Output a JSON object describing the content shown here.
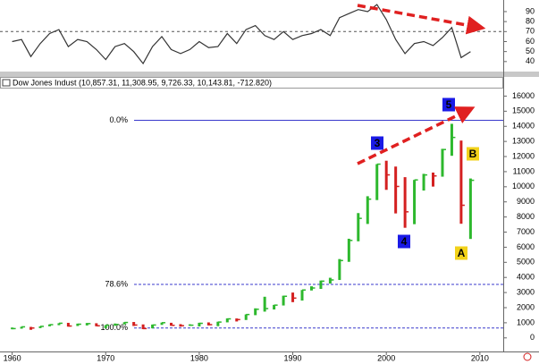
{
  "chart_data": [
    {
      "type": "line",
      "color": "#333333",
      "x": [
        1960,
        1961,
        1962,
        1963,
        1964,
        1965,
        1966,
        1967,
        1968,
        1969,
        1970,
        1971,
        1972,
        1973,
        1974,
        1975,
        1976,
        1977,
        1978,
        1979,
        1980,
        1981,
        1982,
        1983,
        1984,
        1985,
        1986,
        1987,
        1988,
        1989,
        1990,
        1991,
        1992,
        1993,
        1994,
        1995,
        1996,
        1997,
        1998,
        1999,
        2000,
        2001,
        2002,
        2003,
        2004,
        2005,
        2006,
        2007,
        2008,
        2009
      ],
      "values": [
        60,
        62,
        45,
        58,
        68,
        72,
        55,
        62,
        60,
        52,
        42,
        55,
        58,
        50,
        38,
        55,
        65,
        52,
        48,
        52,
        60,
        54,
        55,
        68,
        58,
        72,
        76,
        66,
        62,
        70,
        62,
        66,
        68,
        72,
        66,
        84,
        88,
        92,
        90,
        97,
        82,
        62,
        48,
        58,
        60,
        56,
        64,
        74,
        44,
        50
      ],
      "xlim": [
        1958.7,
        2012.5
      ],
      "ylim": [
        30,
        101.6
      ],
      "yticks": [
        40,
        50,
        60,
        70,
        80,
        90
      ],
      "dashed_line": 70
    },
    {
      "type": "ohlc",
      "title": "Dow Jones Indust (10,857.31, 11,308.95, 9,726.33, 10,143.81, -712.820)",
      "up_color": "#2db82d",
      "down_color": "#d42020",
      "x": [
        1960,
        1961,
        1962,
        1963,
        1964,
        1965,
        1966,
        1967,
        1968,
        1969,
        1970,
        1971,
        1972,
        1973,
        1974,
        1975,
        1976,
        1977,
        1978,
        1979,
        1980,
        1981,
        1982,
        1983,
        1984,
        1985,
        1986,
        1987,
        1988,
        1989,
        1990,
        1991,
        1992,
        1993,
        1994,
        1995,
        1996,
        1997,
        1998,
        1999,
        2000,
        2001,
        2002,
        2003,
        2004,
        2005,
        2006,
        2007,
        2008,
        2009
      ],
      "low": [
        570,
        610,
        535,
        646,
        766,
        840,
        744,
        786,
        825,
        769,
        631,
        797,
        889,
        788,
        577,
        632,
        858,
        800,
        742,
        796,
        759,
        824,
        776,
        1027,
        1086,
        1184,
        1502,
        1738,
        1879,
        2144,
        2365,
        2470,
        3136,
        3241,
        3593,
        3832,
        5032,
        6391,
        7539,
        9120,
        9796,
        8236,
        7286,
        7524,
        9750,
        10012,
        10667,
        12050,
        7552,
        6547
      ],
      "high": [
        685,
        735,
        726,
        767,
        891,
        969,
        995,
        943,
        985,
        968,
        842,
        950,
        1036,
        1051,
        891,
        881,
        1014,
        999,
        907,
        897,
        1000,
        1024,
        1070,
        1287,
        1286,
        1553,
        1955,
        2722,
        2183,
        2791,
        2999,
        3168,
        3413,
        3794,
        3978,
        5216,
        6560,
        8259,
        9374,
        11497,
        11723,
        11337,
        10635,
        10453,
        10855,
        10940,
        12510,
        14165,
        13058,
        10548
      ],
      "close": [
        615,
        731,
        652,
        762,
        874,
        969,
        785,
        905,
        943,
        800,
        838,
        890,
        1020,
        850,
        616,
        852,
        1004,
        831,
        805,
        838,
        963,
        875,
        1046,
        1258,
        1211,
        1546,
        1895,
        1938,
        2168,
        2753,
        2633,
        3168,
        3301,
        3754,
        3834,
        5117,
        6448,
        7908,
        9181,
        11497,
        10787,
        10021,
        8342,
        10453,
        10783,
        10718,
        12463,
        13265,
        8776,
        10428
      ],
      "xlim": [
        1958.7,
        2012.5
      ],
      "ylim": [
        -900,
        16500
      ],
      "xticks": [
        1960,
        1970,
        1980,
        1990,
        2000,
        2010
      ],
      "yticks": [
        0,
        1000,
        2000,
        3000,
        4000,
        5000,
        6000,
        7000,
        8000,
        9000,
        10000,
        11000,
        12000,
        13000,
        14000,
        15000,
        16000
      ],
      "level_color": "#3a3acc",
      "levels": [
        {
          "label": "0.0%",
          "value": 14400
        },
        {
          "label": "78.6%",
          "value": 3540
        },
        {
          "label": "100.0%",
          "value": 650
        }
      ],
      "annotations": [
        {
          "text": "3",
          "color": "#ffffff",
          "background": "#1a1ae6"
        },
        {
          "text": "4",
          "color": "#ffffff",
          "background": "#1a1ae6"
        },
        {
          "text": "5",
          "color": "#ffffff",
          "background": "#1a1ae6"
        },
        {
          "text": "A",
          "color": "#e02020",
          "background": "#f2d21a"
        },
        {
          "text": "B",
          "color": "#e02020",
          "background": "#f2d21a"
        }
      ]
    }
  ]
}
